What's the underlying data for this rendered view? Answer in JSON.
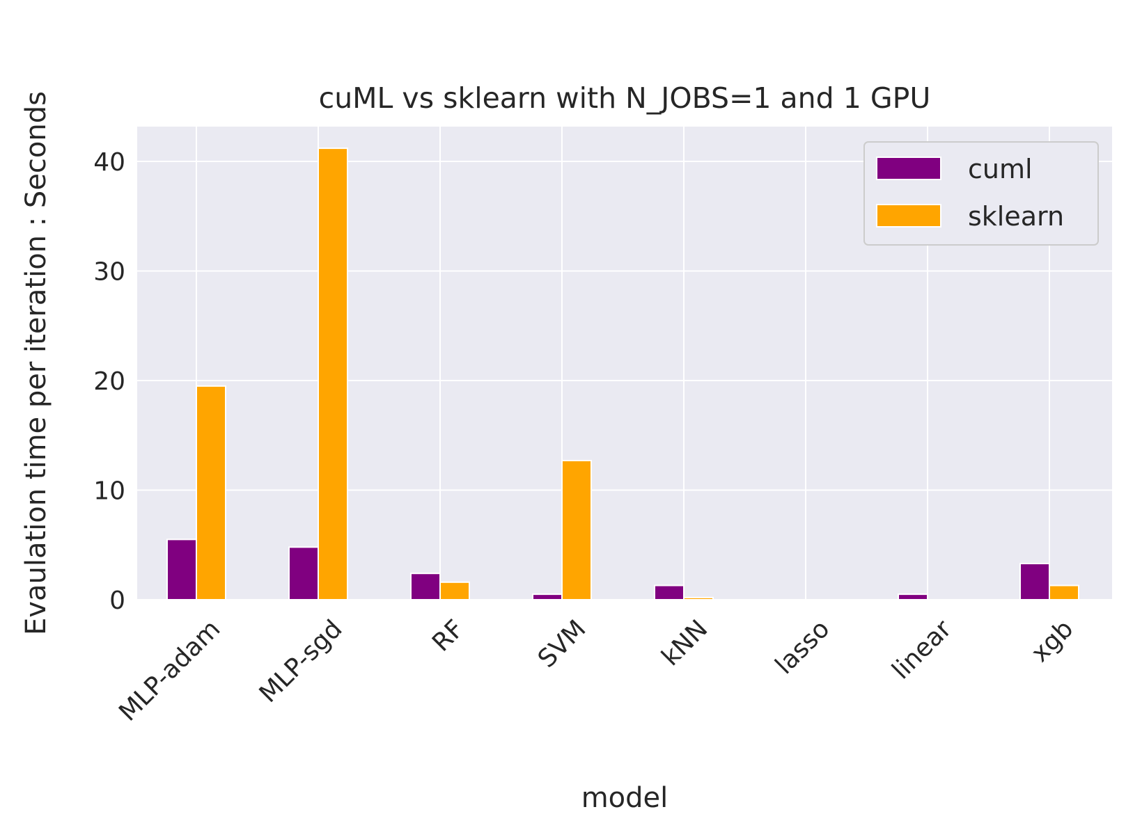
{
  "chart_data": {
    "type": "bar",
    "title": "cuML vs sklearn with N_JOBS=1 and 1 GPU",
    "xlabel": "model",
    "ylabel": "Evaulation time per iteration : Seconds",
    "categories": [
      "MLP-adam",
      "MLP-sgd",
      "RF",
      "SVM",
      "kNN",
      "lasso",
      "linear",
      "xgb"
    ],
    "series": [
      {
        "name": "cuml",
        "color": "#800080",
        "values": [
          5.5,
          4.8,
          2.4,
          0.5,
          1.3,
          0.0,
          0.5,
          3.3
        ]
      },
      {
        "name": "sklearn",
        "color": "#FFA500",
        "values": [
          19.5,
          41.2,
          1.6,
          12.7,
          0.2,
          0.0,
          0.0,
          1.3
        ]
      }
    ],
    "ylim": [
      0,
      43.2
    ],
    "yticks": [
      0,
      10,
      20,
      30,
      40
    ],
    "grid": true,
    "legend_position": "top-right"
  }
}
